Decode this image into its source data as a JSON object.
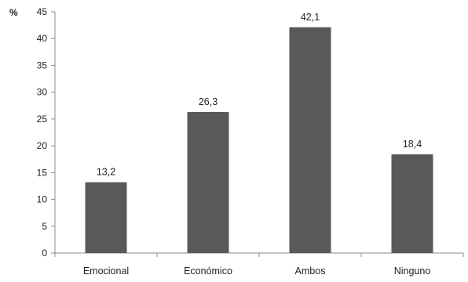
{
  "chart_data": {
    "type": "bar",
    "title": "",
    "xlabel": "",
    "ylabel": "%",
    "categories": [
      "Emocional",
      "Económico",
      "Ambos",
      "Ninguno"
    ],
    "values": [
      13.2,
      26.3,
      42.1,
      18.4
    ],
    "data_labels": [
      "13,2",
      "26,3",
      "42,1",
      "18,4"
    ],
    "ylim": [
      0,
      45
    ],
    "yticks": [
      0,
      5,
      10,
      15,
      20,
      25,
      30,
      35,
      40,
      45
    ],
    "grid": false,
    "legend": "none",
    "bar_color": "#595959",
    "axis_color": "#8c8c8c"
  }
}
